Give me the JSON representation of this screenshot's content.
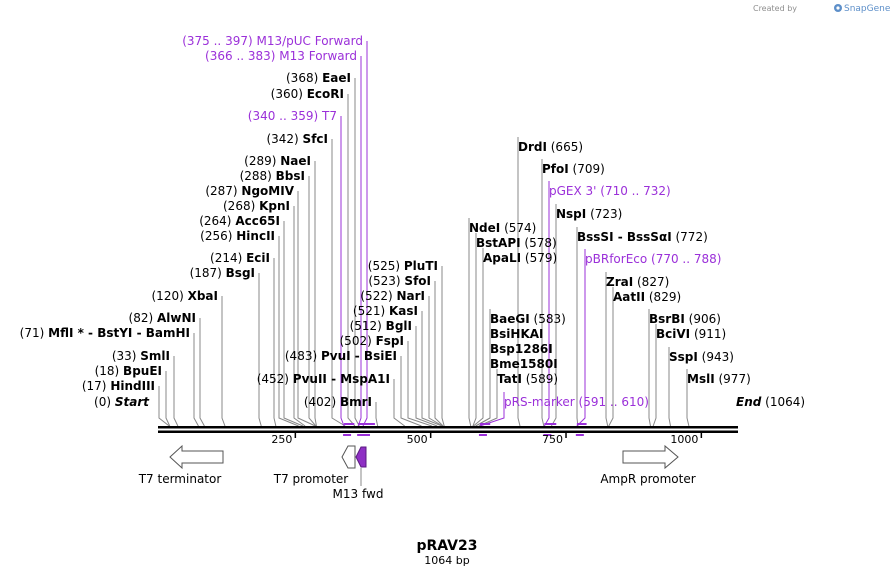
{
  "header": {
    "credit_prefix": "Created by",
    "brand": "SnapGene"
  },
  "plasmid": {
    "name": "pRAV23",
    "length_label": "1064 bp",
    "length": 1064
  },
  "ruler_ticks": [
    {
      "pos": 250,
      "label": "250"
    },
    {
      "pos": 500,
      "label": "500"
    },
    {
      "pos": 750,
      "label": "750"
    },
    {
      "pos": 1000,
      "label": "1000"
    }
  ],
  "sites": [
    {
      "type": "enzyme",
      "name": "Start",
      "coord": "(0)",
      "pos": 0,
      "italic": true
    },
    {
      "type": "enzyme",
      "name": "HindIII",
      "coord": "(17)",
      "pos": 17
    },
    {
      "type": "enzyme",
      "name": "BpuEI",
      "coord": "(18)",
      "pos": 18
    },
    {
      "type": "enzyme",
      "name": "SmlI",
      "coord": "(33)",
      "pos": 33
    },
    {
      "type": "enzyme",
      "name": "MflI * - BstYI - BamHI",
      "coord": "(71)",
      "pos": 71
    },
    {
      "type": "enzyme",
      "name": "AlwNI",
      "coord": "(82)",
      "pos": 82
    },
    {
      "type": "enzyme",
      "name": "XbaI",
      "coord": "(120)",
      "pos": 120
    },
    {
      "type": "enzyme",
      "name": "BsgI",
      "coord": "(187)",
      "pos": 187
    },
    {
      "type": "enzyme",
      "name": "EciI",
      "coord": "(214)",
      "pos": 214
    },
    {
      "type": "enzyme",
      "name": "HincII",
      "coord": "(256)",
      "pos": 256
    },
    {
      "type": "enzyme",
      "name": "Acc65I",
      "coord": "(264)",
      "pos": 264
    },
    {
      "type": "enzyme",
      "name": "KpnI",
      "coord": "(268)",
      "pos": 268
    },
    {
      "type": "enzyme",
      "name": "NgoMIV",
      "coord": "(287)",
      "pos": 287
    },
    {
      "type": "enzyme",
      "name": "BbsI",
      "coord": "(288)",
      "pos": 288
    },
    {
      "type": "enzyme",
      "name": "NaeI",
      "coord": "(289)",
      "pos": 289
    },
    {
      "type": "enzyme",
      "name": "SfcI",
      "coord": "(342)",
      "pos": 342
    },
    {
      "type": "primer",
      "name": "T7",
      "coord": "(340 .. 359)",
      "pos": 340,
      "end": 359
    },
    {
      "type": "enzyme",
      "name": "EcoRI",
      "coord": "(360)",
      "pos": 360
    },
    {
      "type": "enzyme",
      "name": "EaeI",
      "coord": "(368)",
      "pos": 368
    },
    {
      "type": "primer",
      "name": "M13 Forward",
      "coord": "(366 .. 383)",
      "pos": 366,
      "end": 383
    },
    {
      "type": "primer",
      "name": "M13/pUC Forward",
      "coord": "(375 .. 397)",
      "pos": 375,
      "end": 397
    },
    {
      "type": "enzyme",
      "name": "PvuII - MspA1I",
      "coord": "(452)",
      "pos": 452
    },
    {
      "type": "enzyme",
      "name": "PvuI - BsiEI",
      "coord": "(483)",
      "pos": 483
    },
    {
      "type": "enzyme",
      "name": "BmrI",
      "coord": "(402)",
      "pos": 402
    },
    {
      "type": "enzyme",
      "name": "FspI",
      "coord": "(502)",
      "pos": 502
    },
    {
      "type": "enzyme",
      "name": "BglI",
      "coord": "(512)",
      "pos": 512
    },
    {
      "type": "enzyme",
      "name": "KasI",
      "coord": "(521)",
      "pos": 521
    },
    {
      "type": "enzyme",
      "name": "NarI",
      "coord": "(522)",
      "pos": 522
    },
    {
      "type": "enzyme",
      "name": "SfoI",
      "coord": "(523)",
      "pos": 523
    },
    {
      "type": "enzyme",
      "name": "PluTI",
      "coord": "(525)",
      "pos": 525
    },
    {
      "type": "enzyme",
      "name": "NdeI",
      "coord": "(574)",
      "pos": 574
    },
    {
      "type": "enzyme",
      "name": "BstAPI",
      "coord": "(578)",
      "pos": 578
    },
    {
      "type": "enzyme",
      "name": "ApaLI",
      "coord": "(579)",
      "pos": 579
    },
    {
      "type": "enzyme",
      "name": "BaeGI",
      "coord": "(583)",
      "pos": 583
    },
    {
      "type": "enzyme",
      "name": "BsiHKAI",
      "coord": "",
      "pos": 583
    },
    {
      "type": "enzyme",
      "name": "Bsp1286I",
      "coord": "",
      "pos": 583
    },
    {
      "type": "enzyme",
      "name": "Bme1580I",
      "coord": "",
      "pos": 583
    },
    {
      "type": "enzyme",
      "name": "TatI",
      "coord": "(589)",
      "pos": 589
    },
    {
      "type": "primer",
      "name": "pRS-marker",
      "coord": "(591 .. 610)",
      "pos": 591,
      "end": 610
    },
    {
      "type": "enzyme",
      "name": "DrdI",
      "coord": "(665)",
      "pos": 665
    },
    {
      "type": "enzyme",
      "name": "PfoI",
      "coord": "(709)",
      "pos": 709
    },
    {
      "type": "primer",
      "name": "pGEX 3'",
      "coord": "(710 .. 732)",
      "pos": 710,
      "end": 732
    },
    {
      "type": "enzyme",
      "name": "NspI",
      "coord": "(723)",
      "pos": 723
    },
    {
      "type": "enzyme",
      "name": "BssSI - BssSαI",
      "coord": "(772)",
      "pos": 772
    },
    {
      "type": "primer",
      "name": "pBRforEco",
      "coord": "(770 .. 788)",
      "pos": 770,
      "end": 788
    },
    {
      "type": "enzyme",
      "name": "ZraI",
      "coord": "(827)",
      "pos": 827
    },
    {
      "type": "enzyme",
      "name": "AatII",
      "coord": "(829)",
      "pos": 829
    },
    {
      "type": "enzyme",
      "name": "BsrBI",
      "coord": "(906)",
      "pos": 906
    },
    {
      "type": "enzyme",
      "name": "BciVI",
      "coord": "(911)",
      "pos": 911
    },
    {
      "type": "enzyme",
      "name": "SspI",
      "coord": "(943)",
      "pos": 943
    },
    {
      "type": "enzyme",
      "name": "MslI",
      "coord": "(977)",
      "pos": 977
    },
    {
      "type": "enzyme",
      "name": "End",
      "coord": "(1064)",
      "pos": 1064,
      "italic": true
    }
  ],
  "features": [
    {
      "name": "T7 terminator",
      "shape": "arrow-left",
      "color": "#ffffff"
    },
    {
      "name": "T7 promoter",
      "shape": "arrow-left-small",
      "color": "#ffffff"
    },
    {
      "name": "M13 fwd",
      "shape": "arrow-left-small",
      "color": "#8e2fc4"
    },
    {
      "name": "AmpR promoter",
      "shape": "arrow-right",
      "color": "#ffffff"
    }
  ],
  "colors": {
    "primer": "#9b30d9",
    "backbone": "#000000",
    "line": "#888888"
  }
}
